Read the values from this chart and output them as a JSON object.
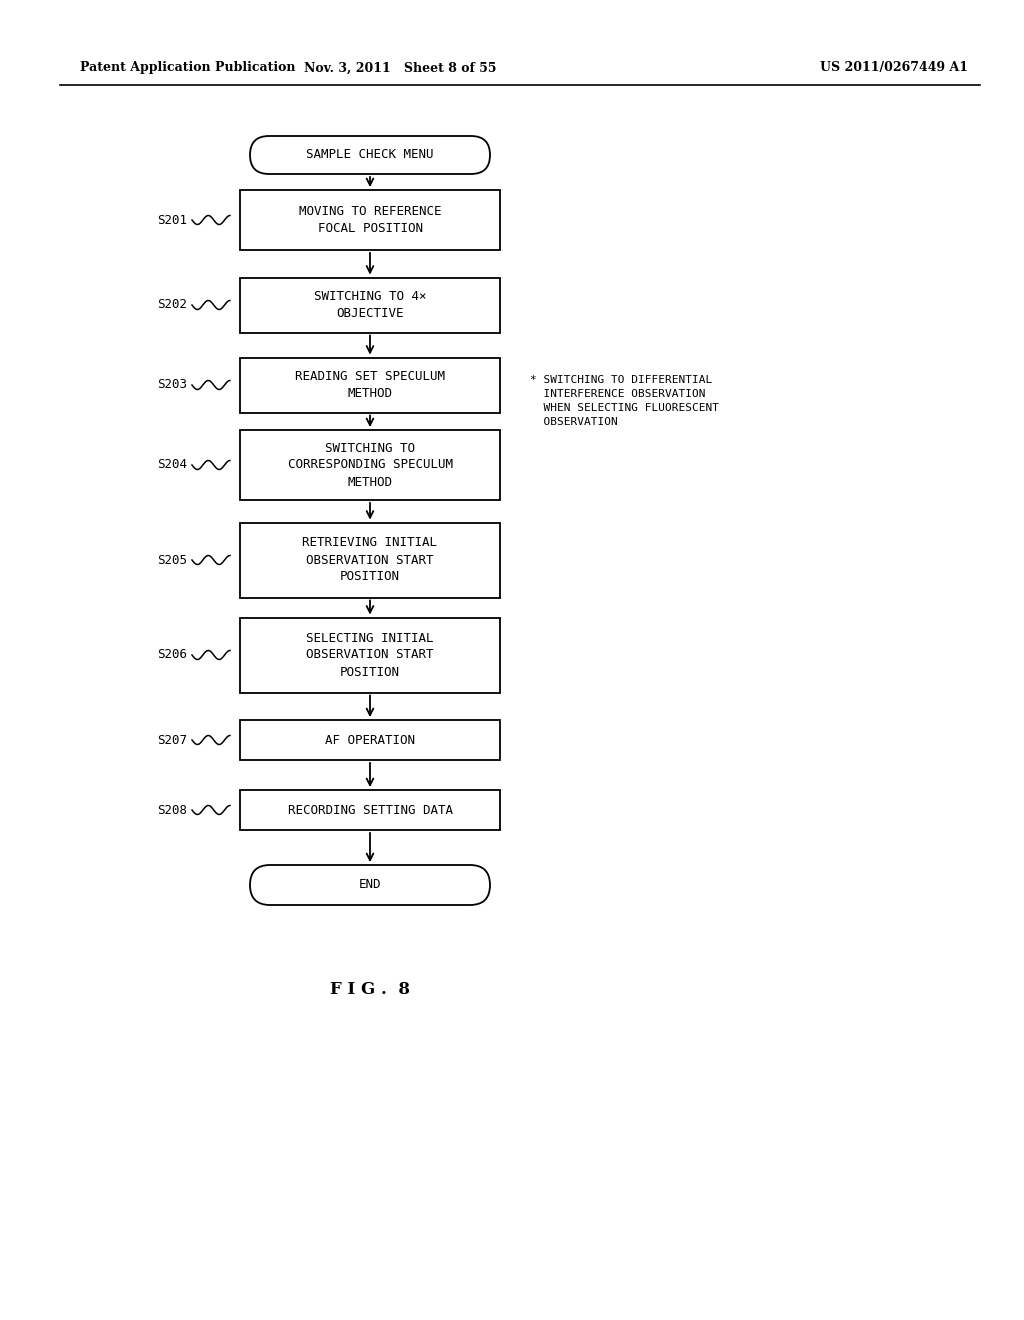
{
  "bg_color": "#ffffff",
  "header_left": "Patent Application Publication",
  "header_mid": "Nov. 3, 2011   Sheet 8 of 55",
  "header_right": "US 2011/0267449 A1",
  "figure_label": "F I G .  8",
  "title_node": "SAMPLE CHECK MENU",
  "end_node": "END",
  "steps": [
    {
      "id": "S201",
      "text": "MOVING TO REFERENCE\nFOCAL POSITION"
    },
    {
      "id": "S202",
      "text": "SWITCHING TO 4×\nOBJECTIVE"
    },
    {
      "id": "S203",
      "text": "READING SET SPECULUM\nMETHOD"
    },
    {
      "id": "S204",
      "text": "SWITCHING TO\nCORRESPONDING SPECULUM\nMETHOD"
    },
    {
      "id": "S205",
      "text": "RETRIEVING INITIAL\nOBSERVATION START\nPOSITION"
    },
    {
      "id": "S206",
      "text": "SELECTING INITIAL\nOBSERVATION START\nPOSITION"
    },
    {
      "id": "S207",
      "text": "AF OPERATION"
    },
    {
      "id": "S208",
      "text": "RECORDING SETTING DATA"
    }
  ],
  "annotation": "* SWITCHING TO DIFFERENTIAL\n  INTERFERENCE OBSERVATION\n  WHEN SELECTING FLUORESCENT\n  OBSERVATION",
  "annotation_step_index": 2,
  "arrow_color": "#000000",
  "text_color": "#000000",
  "font_size_box": 9,
  "font_size_header": 9,
  "font_size_label": 9,
  "font_size_annot": 8,
  "font_size_fig": 12
}
